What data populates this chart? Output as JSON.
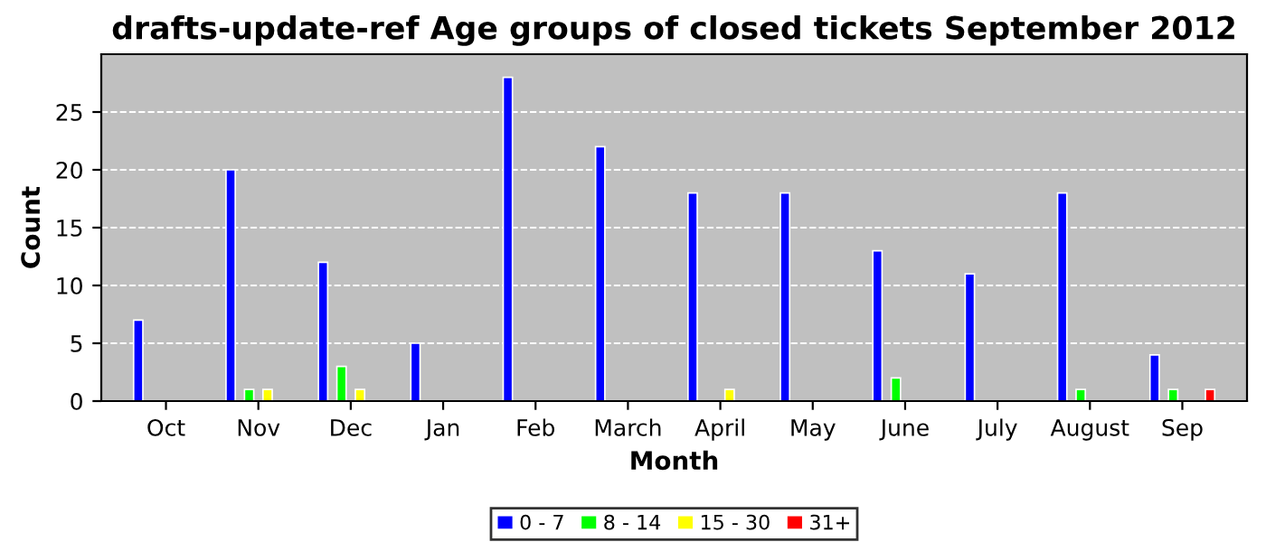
{
  "chart_data": {
    "type": "bar",
    "title": "drafts-update-ref Age groups of closed tickets September 2012",
    "xlabel": "Month",
    "ylabel": "Count",
    "categories": [
      "Oct",
      "Nov",
      "Dec",
      "Jan",
      "Feb",
      "March",
      "April",
      "May",
      "June",
      "July",
      "August",
      "Sep"
    ],
    "series": [
      {
        "name": "0 - 7",
        "color": "#0000ff",
        "values": [
          7,
          20,
          12,
          5,
          28,
          22,
          18,
          18,
          13,
          11,
          18,
          4
        ]
      },
      {
        "name": "8 - 14",
        "color": "#00ff00",
        "values": [
          null,
          1,
          3,
          null,
          null,
          null,
          null,
          null,
          2,
          null,
          1,
          1
        ]
      },
      {
        "name": "15 - 30",
        "color": "#ffff00",
        "values": [
          null,
          1,
          1,
          null,
          null,
          null,
          1,
          null,
          null,
          null,
          null,
          null
        ]
      },
      {
        "name": "31+",
        "color": "#ff0000",
        "values": [
          null,
          null,
          null,
          null,
          null,
          null,
          null,
          null,
          null,
          null,
          null,
          1
        ]
      }
    ],
    "ylim": [
      0,
      30
    ],
    "yticks": [
      0,
      5,
      10,
      15,
      20,
      25
    ],
    "grid": "y",
    "legend": "bottom"
  }
}
